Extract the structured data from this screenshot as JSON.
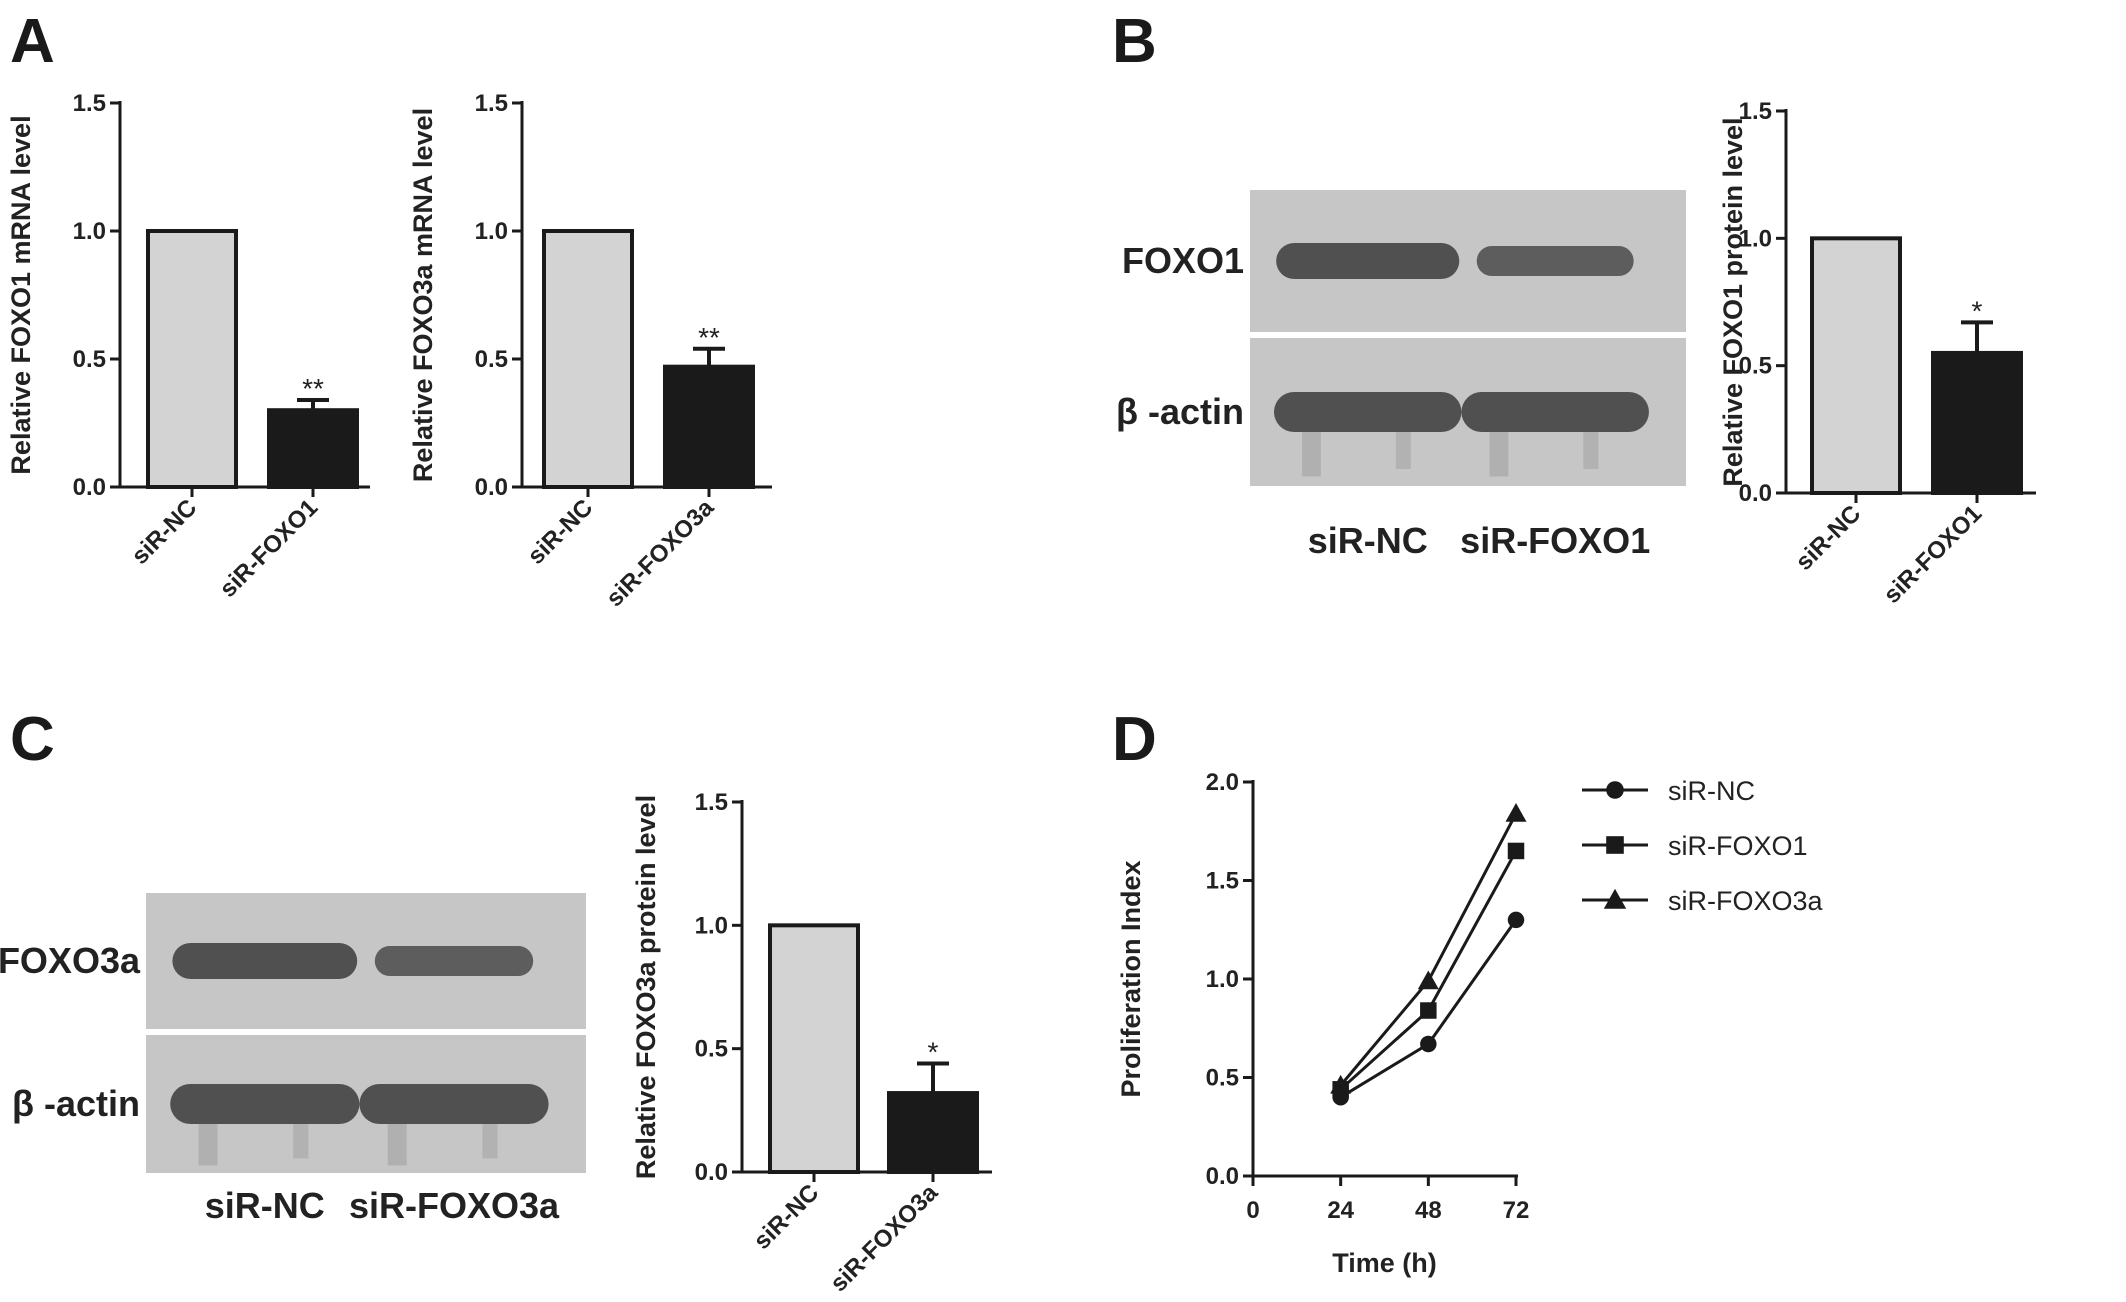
{
  "panels": [
    {
      "letter": "A"
    },
    {
      "letter": "B"
    },
    {
      "letter": "C"
    },
    {
      "letter": "D"
    }
  ],
  "blots": [
    {
      "panel": "B",
      "rows": [
        {
          "label": "FOXO1"
        },
        {
          "label": "β -actin"
        }
      ],
      "lanes": [
        "siR-NC",
        "siR-FOXO1"
      ]
    },
    {
      "panel": "C",
      "rows": [
        {
          "label": "FOXO3a"
        },
        {
          "label": "β -actin"
        }
      ],
      "lanes": [
        "siR-NC",
        "siR-FOXO3a"
      ]
    }
  ],
  "colors": {
    "control_bar": "#d3d3d3",
    "treatment_bar": "#1a1a1a",
    "axis": "#1a1a1a",
    "blot_background": "#c6c6c6",
    "blot_band": "#4a4a4a"
  },
  "chart_data": [
    {
      "id": "A1",
      "panel": "A",
      "type": "bar",
      "title": "",
      "xlabel": "",
      "ylabel": "Relative FOXO1 mRNA level",
      "categories": [
        "siR-NC",
        "siR-FOXO1"
      ],
      "values": [
        1.0,
        0.3
      ],
      "errors": [
        0,
        0.04
      ],
      "significance": [
        "",
        "**"
      ],
      "ylim": [
        0,
        1.5
      ],
      "yticks": [
        "0.0",
        "0.5",
        "1.0",
        "1.5"
      ]
    },
    {
      "id": "A2",
      "panel": "A",
      "type": "bar",
      "title": "",
      "xlabel": "",
      "ylabel": "Relative FOXO3a mRNA level",
      "categories": [
        "siR-NC",
        "siR-FOXO3a"
      ],
      "values": [
        1.0,
        0.47
      ],
      "errors": [
        0,
        0.07
      ],
      "significance": [
        "",
        "**"
      ],
      "ylim": [
        0,
        1.5
      ],
      "yticks": [
        "0.0",
        "0.5",
        "1.0",
        "1.5"
      ]
    },
    {
      "id": "B",
      "panel": "B",
      "type": "bar",
      "title": "",
      "xlabel": "",
      "ylabel": "Relative FOXO1  protein level",
      "categories": [
        "siR-NC",
        "siR-FOXO1"
      ],
      "values": [
        1.0,
        0.55
      ],
      "errors": [
        0,
        0.12
      ],
      "significance": [
        "",
        "*"
      ],
      "ylim": [
        0,
        1.5
      ],
      "yticks": [
        "0.0",
        "0.5",
        "1.0",
        "1.5"
      ]
    },
    {
      "id": "C",
      "panel": "C",
      "type": "bar",
      "title": "",
      "xlabel": "",
      "ylabel": "Relative FOXO3a protein level",
      "categories": [
        "siR-NC",
        "siR-FOXO3a"
      ],
      "values": [
        1.0,
        0.32
      ],
      "errors": [
        0,
        0.12
      ],
      "significance": [
        "",
        "*"
      ],
      "ylim": [
        0,
        1.5
      ],
      "yticks": [
        "0.0",
        "0.5",
        "1.0",
        "1.5"
      ]
    },
    {
      "id": "D",
      "panel": "D",
      "type": "line",
      "title": "",
      "xlabel": "Time (h)",
      "ylabel": "Proliferation Index",
      "x": [
        24,
        48,
        72
      ],
      "xlim": [
        0,
        72
      ],
      "xticks": [
        "0",
        "24",
        "48",
        "72"
      ],
      "ylim": [
        0,
        2.0
      ],
      "yticks": [
        "0.0",
        "0.5",
        "1.0",
        "1.5",
        "2.0"
      ],
      "legend_position": "top-right",
      "series": [
        {
          "name": "siR-NC",
          "marker": "circle",
          "values": [
            0.4,
            0.67,
            1.3
          ]
        },
        {
          "name": "siR-FOXO1",
          "marker": "square",
          "values": [
            0.44,
            0.84,
            1.65
          ]
        },
        {
          "name": "siR-FOXO3a",
          "marker": "triangle",
          "values": [
            0.46,
            0.99,
            1.84
          ]
        }
      ]
    }
  ]
}
